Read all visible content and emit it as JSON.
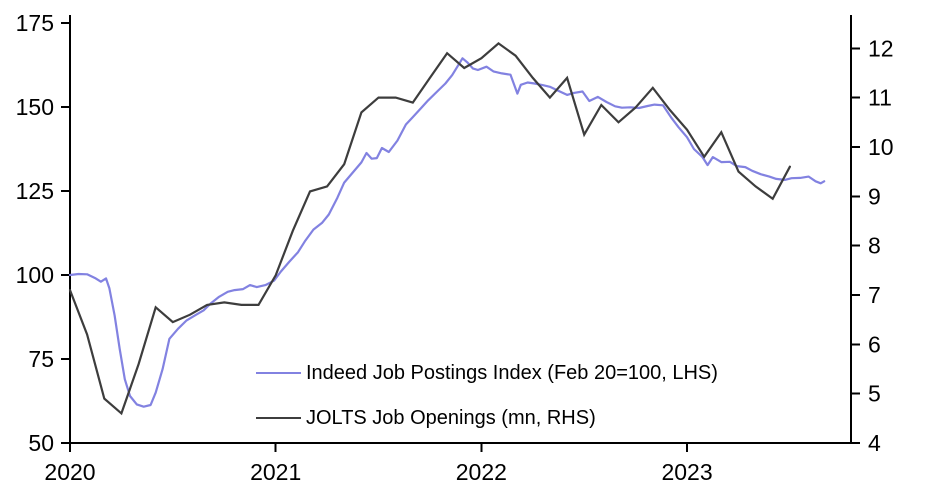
{
  "chart_data": {
    "type": "line",
    "title": "",
    "grid": false,
    "legend_position": "inside-bottom-center",
    "x_axis": {
      "tick_labels": [
        "2020",
        "2021",
        "2022",
        "2023"
      ],
      "unit": "year",
      "months_shown": 45.6
    },
    "left_axis": {
      "ticks": [
        50,
        75,
        100,
        125,
        150,
        175
      ],
      "range": [
        50,
        175
      ]
    },
    "right_axis": {
      "ticks": [
        4,
        5,
        6,
        7,
        8,
        9,
        10,
        11,
        12
      ],
      "range": [
        4,
        12.67
      ]
    },
    "series": [
      {
        "name": "Indeed Job Postings Index (Feb 20=100, LHS)",
        "axis": "left",
        "color": "#8282e1",
        "stroke_width": 2.2,
        "points_note": "pairs of [months since Jan 2020, index value]",
        "points": [
          [
            0,
            100
          ],
          [
            0.5,
            100.3
          ],
          [
            1,
            100.2
          ],
          [
            1.5,
            99
          ],
          [
            1.8,
            98
          ],
          [
            2.1,
            99
          ],
          [
            2.3,
            96
          ],
          [
            2.6,
            88
          ],
          [
            2.9,
            78
          ],
          [
            3.2,
            69
          ],
          [
            3.5,
            64
          ],
          [
            3.9,
            61.5
          ],
          [
            4.3,
            60.8
          ],
          [
            4.7,
            61.3
          ],
          [
            5.0,
            65
          ],
          [
            5.4,
            72
          ],
          [
            5.8,
            81
          ],
          [
            6.3,
            84
          ],
          [
            6.8,
            86.5
          ],
          [
            7.3,
            88
          ],
          [
            7.8,
            89.5
          ],
          [
            8.2,
            91.5
          ],
          [
            8.7,
            93.5
          ],
          [
            9.2,
            95
          ],
          [
            9.6,
            95.5
          ],
          [
            10.1,
            95.8
          ],
          [
            10.5,
            97
          ],
          [
            10.9,
            96.4
          ],
          [
            11.4,
            97
          ],
          [
            11.9,
            98.3
          ],
          [
            12.3,
            101
          ],
          [
            12.8,
            104
          ],
          [
            13.3,
            106.8
          ],
          [
            13.7,
            110
          ],
          [
            14.2,
            113.5
          ],
          [
            14.7,
            115.5
          ],
          [
            15.1,
            118
          ],
          [
            15.6,
            123
          ],
          [
            16.0,
            127.5
          ],
          [
            16.5,
            130.5
          ],
          [
            17.0,
            133.5
          ],
          [
            17.3,
            136.3
          ],
          [
            17.6,
            134.6
          ],
          [
            17.9,
            134.8
          ],
          [
            18.2,
            137.8
          ],
          [
            18.6,
            136.6
          ],
          [
            19.1,
            140
          ],
          [
            19.6,
            144.8
          ],
          [
            20.0,
            147
          ],
          [
            20.5,
            149.8
          ],
          [
            20.9,
            152
          ],
          [
            21.4,
            154.5
          ],
          [
            21.9,
            157
          ],
          [
            22.3,
            159.5
          ],
          [
            22.9,
            164.5
          ],
          [
            23.2,
            163.2
          ],
          [
            23.5,
            161.5
          ],
          [
            23.8,
            161
          ],
          [
            24.3,
            162
          ],
          [
            24.7,
            160.6
          ],
          [
            25.2,
            160
          ],
          [
            25.7,
            159.6
          ],
          [
            26.1,
            154
          ],
          [
            26.3,
            156.6
          ],
          [
            26.7,
            157.3
          ],
          [
            27.1,
            157
          ],
          [
            27.6,
            156.5
          ],
          [
            28.0,
            156
          ],
          [
            28.5,
            154.8
          ],
          [
            29.0,
            153.6
          ],
          [
            29.4,
            154.2
          ],
          [
            29.9,
            154.6
          ],
          [
            30.3,
            151.8
          ],
          [
            30.8,
            153
          ],
          [
            31.3,
            151.5
          ],
          [
            31.8,
            150.2
          ],
          [
            32.2,
            149.8
          ],
          [
            32.7,
            149.9
          ],
          [
            33.2,
            149.7
          ],
          [
            33.7,
            150.3
          ],
          [
            34.1,
            150.7
          ],
          [
            34.6,
            150.5
          ],
          [
            35.1,
            146.7
          ],
          [
            35.5,
            144
          ],
          [
            36.0,
            141
          ],
          [
            36.4,
            137.5
          ],
          [
            36.9,
            135.1
          ],
          [
            37.2,
            132.7
          ],
          [
            37.5,
            135.1
          ],
          [
            38.0,
            133.6
          ],
          [
            38.5,
            133.7
          ],
          [
            38.9,
            132.4
          ],
          [
            39.4,
            132.1
          ],
          [
            39.8,
            131
          ],
          [
            40.3,
            130
          ],
          [
            40.8,
            129.3
          ],
          [
            41.2,
            128.6
          ],
          [
            41.7,
            128.3
          ],
          [
            42.1,
            128.8
          ],
          [
            42.6,
            128.9
          ],
          [
            43.1,
            129.3
          ],
          [
            43.5,
            127.9
          ],
          [
            43.8,
            127.3
          ],
          [
            44.0,
            127.9
          ]
        ]
      },
      {
        "name": "JOLTS Job Openings (mn, RHS)",
        "axis": "right",
        "color": "#3d3d3d",
        "stroke_width": 2.2,
        "start_month": 0,
        "monthly_values_note": "monthly from Jan 2020 to Jul 2023, millions",
        "monthly_values": [
          7.1,
          6.2,
          4.9,
          4.6,
          5.6,
          6.75,
          6.45,
          6.6,
          6.8,
          6.85,
          6.8,
          6.8,
          7.4,
          8.3,
          9.1,
          9.2,
          9.65,
          10.7,
          11.0,
          11.0,
          10.9,
          11.4,
          11.9,
          11.6,
          11.8,
          12.1,
          11.85,
          11.4,
          11.0,
          11.4,
          10.25,
          10.85,
          10.5,
          10.8,
          11.2,
          10.75,
          10.35,
          9.8,
          10.3,
          9.5,
          9.2,
          8.95,
          9.6
        ]
      }
    ]
  }
}
